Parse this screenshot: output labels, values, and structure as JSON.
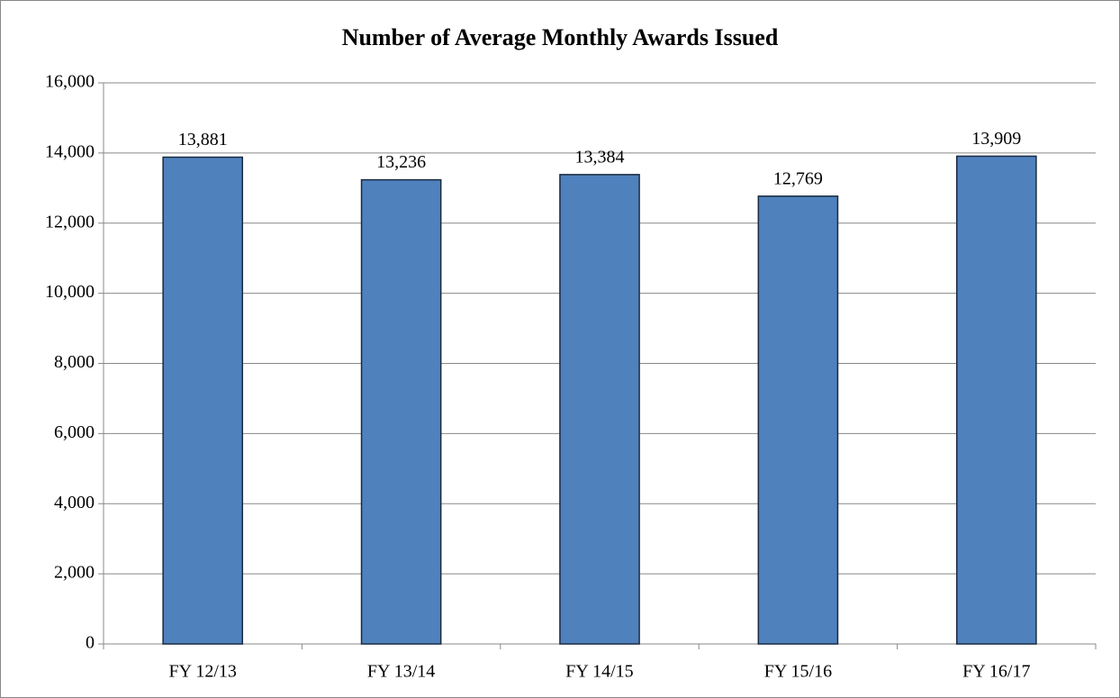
{
  "chart_data": {
    "type": "bar",
    "title": "Number of Average Monthly Awards Issued",
    "categories": [
      "FY 12/13",
      "FY 13/14",
      "FY 14/15",
      "FY 15/16",
      "FY 16/17"
    ],
    "values": [
      13881,
      13236,
      13384,
      12769,
      13909
    ],
    "value_labels": [
      "13,881",
      "13,236",
      "13,384",
      "12,769",
      "13,909"
    ],
    "color": "#4f81bd",
    "ylim": [
      0,
      16000
    ],
    "yticks": [
      0,
      {
        "value": 2000,
        "label": "2,000"
      },
      {
        "value": 4000,
        "label": "4,000"
      },
      {
        "value": 6000,
        "label": "6,000"
      },
      {
        "value": 8000,
        "label": "8,000"
      },
      {
        "value": 10000,
        "label": "10,000"
      },
      {
        "value": 12000,
        "label": "12,000"
      },
      {
        "value": 14000,
        "label": "14,000"
      },
      {
        "value": 16000,
        "label": "16,000"
      }
    ],
    "grid": true
  }
}
